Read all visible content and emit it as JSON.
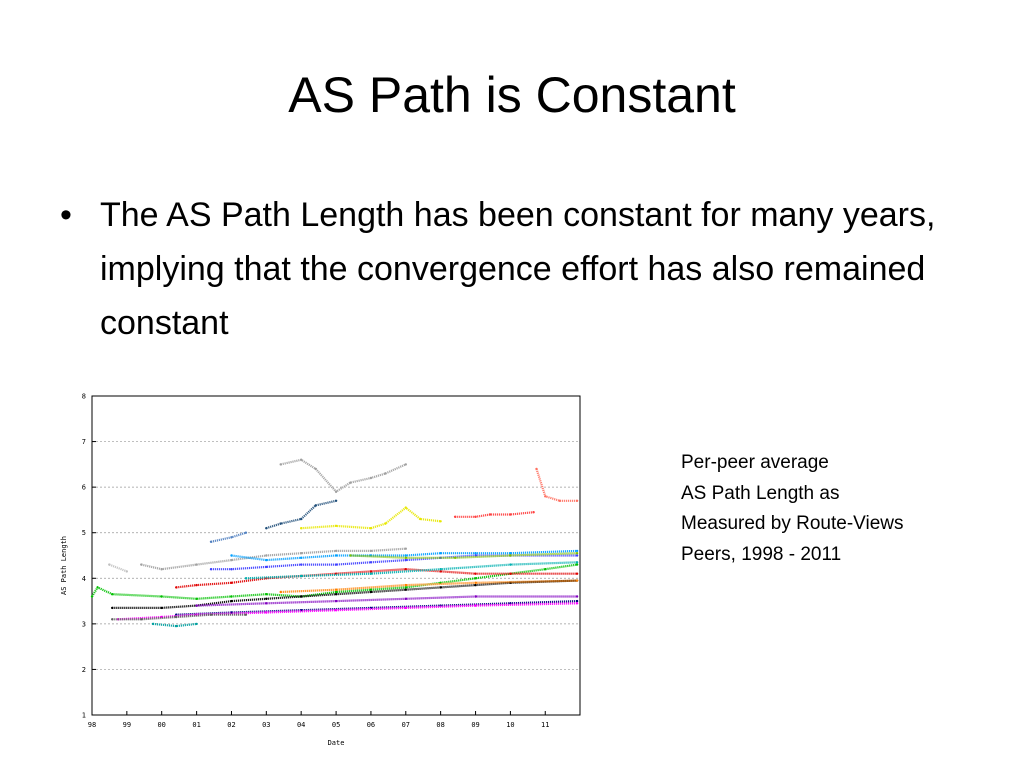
{
  "slide": {
    "title": "AS Path is Constant",
    "bullet": "The AS Path Length has been constant for many years, implying that the convergence effort has also remained constant",
    "caption_lines": [
      "Per-peer average",
      "AS Path Length as",
      "Measured by Route-Views",
      "Peers, 1998 - 2011"
    ]
  },
  "chart_data": {
    "type": "scatter",
    "title": "",
    "xlabel": "Date",
    "ylabel": "AS Path Length",
    "x_ticks": [
      "98",
      "99",
      "00",
      "01",
      "02",
      "03",
      "04",
      "05",
      "06",
      "07",
      "08",
      "09",
      "10",
      "11"
    ],
    "x_tick_dates": [
      "1998-01-01",
      "1999-01-01",
      "2000-01-01",
      "2001-01-01",
      "2002-01-01",
      "2003-01-01",
      "2004-01-01",
      "2005-01-01",
      "2006-01-01",
      "2007-01-01",
      "2008-01-01",
      "2009-01-01",
      "2010-01-01",
      "2011-01-01"
    ],
    "xlim": [
      "1998-01-01",
      "2011-12-31"
    ],
    "ylim": [
      1,
      8
    ],
    "y_ticks": [
      1,
      2,
      3,
      4,
      5,
      6,
      7,
      8
    ],
    "grid": true,
    "legend": "none",
    "series": [
      {
        "color": "#00c000",
        "points": [
          [
            "1998-01-01",
            3.6
          ],
          [
            "1998-03-01",
            3.8
          ],
          [
            "1998-08-01",
            3.65
          ],
          [
            "2000-01-01",
            3.6
          ],
          [
            "2001-01-01",
            3.55
          ],
          [
            "2002-01-01",
            3.6
          ],
          [
            "2003-01-01",
            3.65
          ],
          [
            "2004-01-01",
            3.6
          ],
          [
            "2005-01-01",
            3.7
          ],
          [
            "2006-01-01",
            3.75
          ],
          [
            "2007-01-01",
            3.8
          ],
          [
            "2008-01-01",
            3.9
          ],
          [
            "2009-01-01",
            4.0
          ],
          [
            "2010-01-01",
            4.1
          ],
          [
            "2011-01-01",
            4.2
          ],
          [
            "2011-12-01",
            4.3
          ]
        ]
      },
      {
        "color": "#000000",
        "points": [
          [
            "1998-08-01",
            3.35
          ],
          [
            "2000-01-01",
            3.35
          ],
          [
            "2001-01-01",
            3.4
          ],
          [
            "2002-01-01",
            3.5
          ],
          [
            "2003-01-01",
            3.55
          ],
          [
            "2004-01-01",
            3.6
          ],
          [
            "2005-01-01",
            3.65
          ],
          [
            "2006-01-01",
            3.7
          ],
          [
            "2007-01-01",
            3.75
          ],
          [
            "2008-01-01",
            3.8
          ],
          [
            "2009-01-01",
            3.85
          ],
          [
            "2010-01-01",
            3.9
          ],
          [
            "2011-12-01",
            3.95
          ]
        ]
      },
      {
        "color": "#000080",
        "points": [
          [
            "2000-06-01",
            3.2
          ],
          [
            "2002-01-01",
            3.25
          ],
          [
            "2004-01-01",
            3.3
          ],
          [
            "2006-01-01",
            3.35
          ],
          [
            "2008-01-01",
            3.4
          ],
          [
            "2010-01-01",
            3.45
          ],
          [
            "2011-12-01",
            3.5
          ]
        ]
      },
      {
        "color": "#ff00ff",
        "points": [
          [
            "1998-10-01",
            3.1
          ],
          [
            "2000-01-01",
            3.15
          ],
          [
            "2001-01-01",
            3.2
          ],
          [
            "2003-01-01",
            3.25
          ],
          [
            "2005-01-01",
            3.3
          ],
          [
            "2007-01-01",
            3.35
          ],
          [
            "2009-01-01",
            3.4
          ],
          [
            "2011-12-01",
            3.45
          ]
        ]
      },
      {
        "color": "#a0a0a0",
        "points": [
          [
            "1999-06-01",
            4.3
          ],
          [
            "2000-01-01",
            4.2
          ],
          [
            "2001-01-01",
            4.3
          ],
          [
            "2002-01-01",
            4.4
          ],
          [
            "2003-01-01",
            4.5
          ],
          [
            "2004-01-01",
            4.55
          ],
          [
            "2005-01-01",
            4.6
          ],
          [
            "2006-01-01",
            4.6
          ],
          [
            "2007-01-01",
            4.65
          ]
        ]
      },
      {
        "color": "#a0a0a0",
        "points": [
          [
            "2003-06-01",
            6.5
          ],
          [
            "2004-01-01",
            6.6
          ],
          [
            "2004-06-01",
            6.4
          ],
          [
            "2005-01-01",
            5.9
          ],
          [
            "2005-06-01",
            6.1
          ],
          [
            "2006-01-01",
            6.2
          ],
          [
            "2006-06-01",
            6.3
          ],
          [
            "2007-01-01",
            6.5
          ]
        ]
      },
      {
        "color": "#1f4e79",
        "points": [
          [
            "2003-01-01",
            5.1
          ],
          [
            "2003-06-01",
            5.2
          ],
          [
            "2004-01-01",
            5.3
          ],
          [
            "2004-06-01",
            5.6
          ],
          [
            "2005-01-01",
            5.7
          ]
        ]
      },
      {
        "color": "#e8e800",
        "points": [
          [
            "2004-01-01",
            5.1
          ],
          [
            "2005-01-01",
            5.15
          ],
          [
            "2006-01-01",
            5.1
          ],
          [
            "2006-06-01",
            5.2
          ],
          [
            "2007-01-01",
            5.55
          ],
          [
            "2007-06-01",
            5.3
          ],
          [
            "2008-01-01",
            5.25
          ]
        ]
      },
      {
        "color": "#ff4040",
        "points": [
          [
            "2008-06-01",
            5.35
          ],
          [
            "2009-01-01",
            5.35
          ],
          [
            "2009-06-01",
            5.4
          ],
          [
            "2010-01-01",
            5.4
          ],
          [
            "2010-09-01",
            5.45
          ]
        ]
      },
      {
        "color": "#ff7060",
        "points": [
          [
            "2010-10-01",
            6.4
          ],
          [
            "2011-01-01",
            5.8
          ],
          [
            "2011-06-01",
            5.7
          ],
          [
            "2011-12-01",
            5.7
          ]
        ]
      },
      {
        "color": "#00a0ff",
        "points": [
          [
            "2002-01-01",
            4.5
          ],
          [
            "2003-01-01",
            4.4
          ],
          [
            "2004-01-01",
            4.45
          ],
          [
            "2005-01-01",
            4.5
          ],
          [
            "2006-01-01",
            4.5
          ],
          [
            "2007-01-01",
            4.5
          ],
          [
            "2008-01-01",
            4.55
          ],
          [
            "2009-01-01",
            4.55
          ],
          [
            "2010-01-01",
            4.55
          ],
          [
            "2011-12-01",
            4.6
          ]
        ]
      },
      {
        "color": "#4040ff",
        "points": [
          [
            "2001-06-01",
            4.2
          ],
          [
            "2002-01-01",
            4.2
          ],
          [
            "2003-01-01",
            4.25
          ],
          [
            "2004-01-01",
            4.3
          ],
          [
            "2005-01-01",
            4.3
          ],
          [
            "2006-01-01",
            4.35
          ],
          [
            "2007-01-01",
            4.4
          ],
          [
            "2008-01-01",
            4.45
          ],
          [
            "2009-01-01",
            4.5
          ],
          [
            "2010-01-01",
            4.5
          ],
          [
            "2011-12-01",
            4.5
          ]
        ]
      },
      {
        "color": "#e00000",
        "points": [
          [
            "2000-06-01",
            3.8
          ],
          [
            "2001-01-01",
            3.85
          ],
          [
            "2002-01-01",
            3.9
          ],
          [
            "2003-01-01",
            4.0
          ],
          [
            "2004-01-01",
            4.05
          ],
          [
            "2005-01-01",
            4.1
          ],
          [
            "2006-01-01",
            4.15
          ],
          [
            "2007-01-01",
            4.2
          ],
          [
            "2008-01-01",
            4.15
          ],
          [
            "2009-01-01",
            4.1
          ],
          [
            "2010-01-01",
            4.1
          ],
          [
            "2011-12-01",
            4.1
          ]
        ]
      },
      {
        "color": "#00b0b0",
        "points": [
          [
            "2002-06-01",
            4.0
          ],
          [
            "2004-01-01",
            4.05
          ],
          [
            "2006-01-01",
            4.1
          ],
          [
            "2008-01-01",
            4.2
          ],
          [
            "2010-01-01",
            4.3
          ],
          [
            "2011-12-01",
            4.35
          ]
        ]
      },
      {
        "color": "#ff8000",
        "points": [
          [
            "2003-06-01",
            3.7
          ],
          [
            "2005-01-01",
            3.75
          ],
          [
            "2007-01-01",
            3.85
          ],
          [
            "2009-01-01",
            3.9
          ],
          [
            "2011-12-01",
            3.95
          ]
        ]
      },
      {
        "color": "#80c000",
        "points": [
          [
            "2005-06-01",
            4.5
          ],
          [
            "2007-01-01",
            4.45
          ],
          [
            "2008-06-01",
            4.45
          ],
          [
            "2010-01-01",
            4.5
          ],
          [
            "2011-12-01",
            4.55
          ]
        ]
      },
      {
        "color": "#8000c0",
        "points": [
          [
            "2001-01-01",
            3.4
          ],
          [
            "2003-01-01",
            3.45
          ],
          [
            "2005-01-01",
            3.5
          ],
          [
            "2007-01-01",
            3.55
          ],
          [
            "2009-01-01",
            3.6
          ],
          [
            "2011-12-01",
            3.6
          ]
        ]
      },
      {
        "color": "#606060",
        "points": [
          [
            "1998-08-01",
            3.1
          ],
          [
            "1999-06-01",
            3.1
          ],
          [
            "2000-06-01",
            3.15
          ],
          [
            "2001-06-01",
            3.2
          ],
          [
            "2002-06-01",
            3.2
          ]
        ]
      },
      {
        "color": "#00a0a0",
        "points": [
          [
            "1999-10-01",
            3.0
          ],
          [
            "2000-06-01",
            2.95
          ],
          [
            "2001-01-01",
            3.0
          ]
        ]
      },
      {
        "color": "#c0c0c0",
        "points": [
          [
            "1998-07-01",
            4.3
          ],
          [
            "1999-01-01",
            4.15
          ]
        ]
      },
      {
        "color": "#5080c0",
        "points": [
          [
            "2001-06-01",
            4.8
          ],
          [
            "2002-01-01",
            4.9
          ],
          [
            "2002-06-01",
            5.0
          ]
        ]
      }
    ]
  }
}
